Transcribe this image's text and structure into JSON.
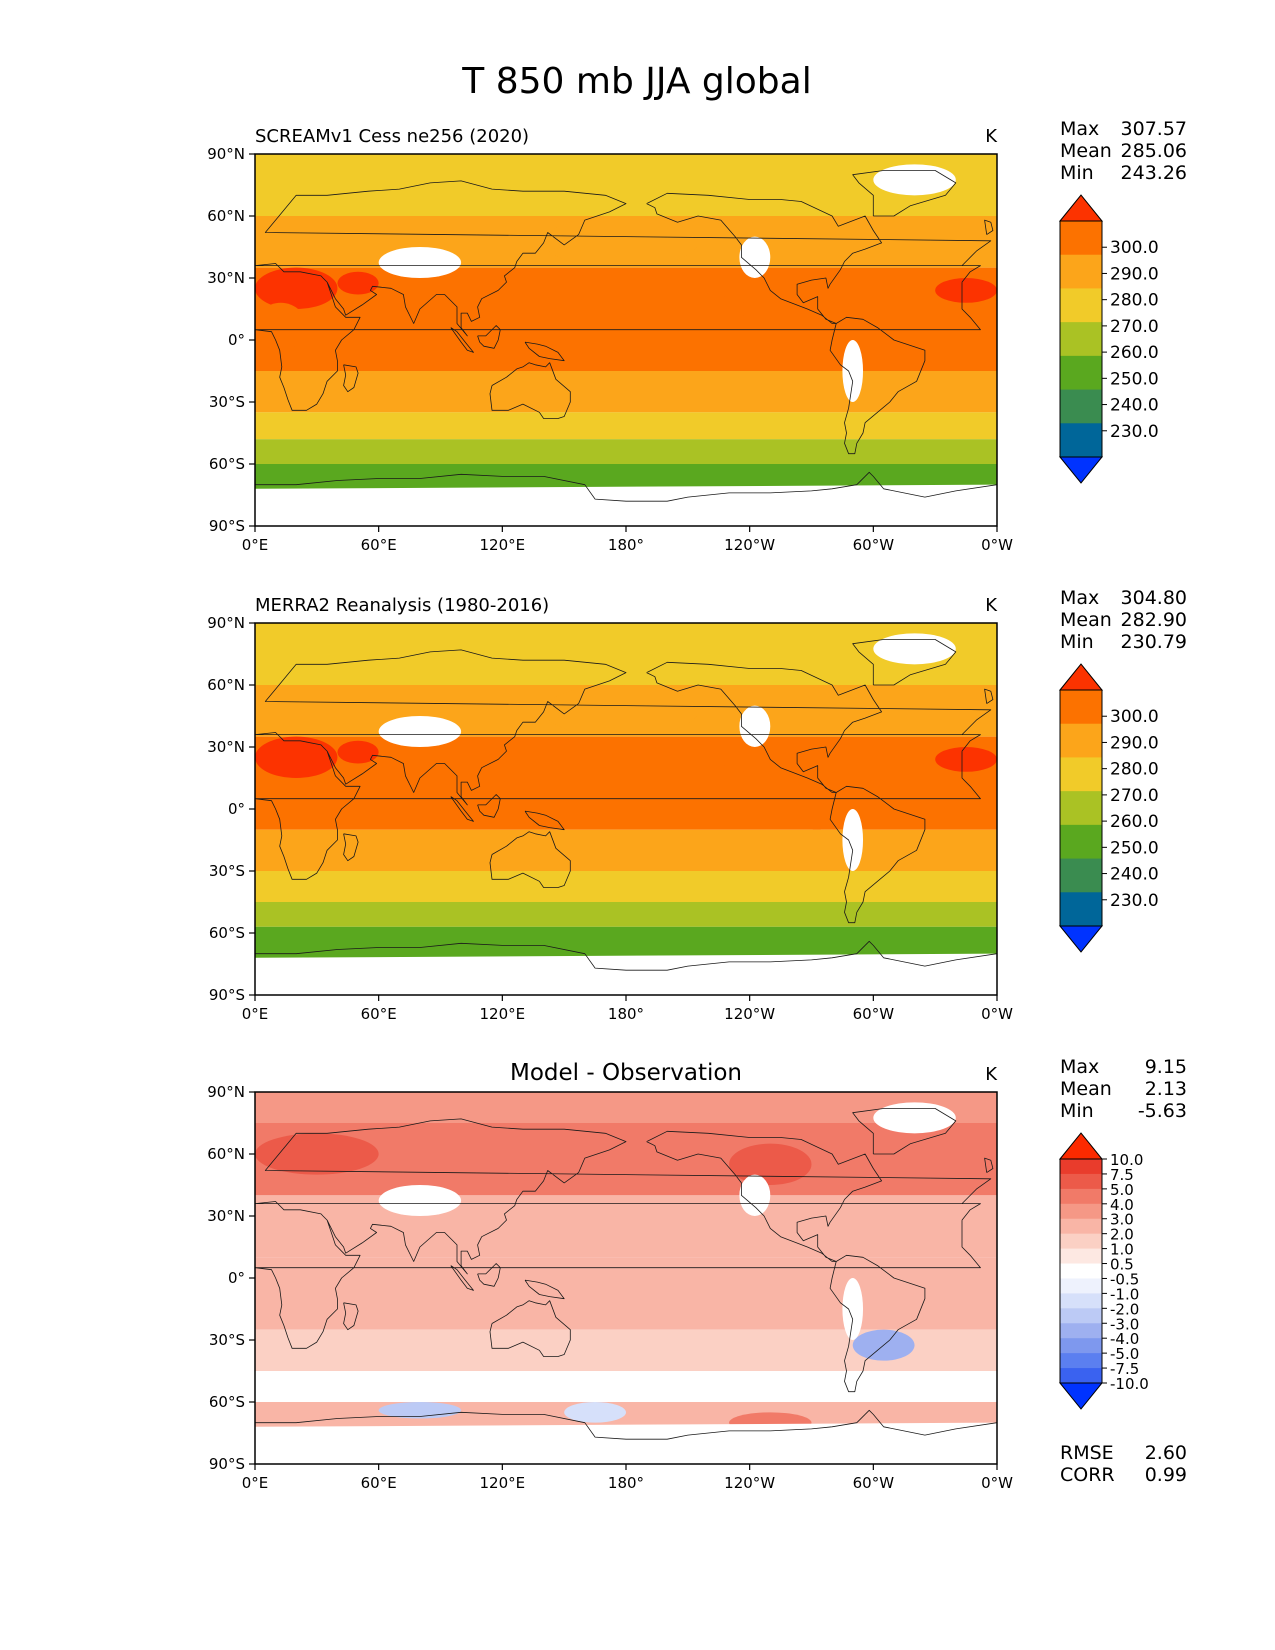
{
  "figure": {
    "title": "T 850 mb JJA global"
  },
  "colors": {
    "abs_scale": [
      "#0033ff",
      "#006699",
      "#3a8c50",
      "#5aa81f",
      "#aac224",
      "#f1cb29",
      "#fca51a",
      "#fc7200",
      "#fc3300"
    ],
    "diff_scale": [
      "#0033ff",
      "#3a62f0",
      "#5b7ff0",
      "#7e98ee",
      "#9eb0f0",
      "#bccaf5",
      "#d6e0fa",
      "#eef2fd",
      "#ffffff",
      "#fde8e2",
      "#fbd0c4",
      "#f9b5a6",
      "#f59886",
      "#f17a68",
      "#ec5a49",
      "#e93c2c",
      "#fc2a00"
    ],
    "ocean_warm": "#fca51a",
    "land_missing": "#ffffff"
  },
  "axes": {
    "lat_ticks": [
      "90°N",
      "60°N",
      "30°N",
      "0°",
      "30°S",
      "60°S",
      "90°S"
    ],
    "lon_ticks": [
      "0°E",
      "60°E",
      "120°E",
      "180°",
      "120°W",
      "60°W",
      "0°W"
    ]
  },
  "panels": [
    {
      "title": "SCREAMv1 Cess ne256 (2020)",
      "units": "K",
      "stats": [
        {
          "label": "Max",
          "value": "307.57"
        },
        {
          "label": "Mean",
          "value": "285.06"
        },
        {
          "label": "Min",
          "value": "243.26"
        }
      ],
      "colorbar": [
        "300.0",
        "290.0",
        "280.0",
        "270.0",
        "260.0",
        "250.0",
        "240.0",
        "230.0"
      ]
    },
    {
      "title": "MERRA2 Reanalysis (1980-2016)",
      "units": "K",
      "stats": [
        {
          "label": "Max",
          "value": "304.80"
        },
        {
          "label": "Mean",
          "value": "282.90"
        },
        {
          "label": "Min",
          "value": "230.79"
        }
      ],
      "colorbar": [
        "300.0",
        "290.0",
        "280.0",
        "270.0",
        "260.0",
        "250.0",
        "240.0",
        "230.0"
      ]
    },
    {
      "title": "Model - Observation",
      "units": "K",
      "stats": [
        {
          "label": "Max",
          "value": "9.15"
        },
        {
          "label": "Mean",
          "value": "2.13"
        },
        {
          "label": "Min",
          "value": "-5.63"
        }
      ],
      "colorbar": [
        "10.0",
        "7.5",
        "5.0",
        "4.0",
        "3.0",
        "2.0",
        "1.0",
        "0.5",
        "-0.5",
        "-1.0",
        "-2.0",
        "-3.0",
        "-4.0",
        "-5.0",
        "-7.5",
        "-10.0"
      ],
      "metrics": [
        {
          "label": "RMSE",
          "value": "2.60"
        },
        {
          "label": "CORR",
          "value": "0.99"
        }
      ]
    }
  ],
  "chart_data": [
    {
      "type": "heatmap",
      "title": "SCREAMv1 Cess ne256 (2020)",
      "variable": "T 850 mb",
      "season": "JJA",
      "units": "K",
      "xlabel": "",
      "ylabel": "",
      "xlim": [
        0,
        360
      ],
      "ylim": [
        -90,
        90
      ],
      "levels": [
        230.0,
        240.0,
        250.0,
        260.0,
        270.0,
        280.0,
        290.0,
        300.0
      ],
      "zonal_bands": [
        {
          "lat_range": [
            60,
            90
          ],
          "value": 275
        },
        {
          "lat_range": [
            35,
            60
          ],
          "value": 285
        },
        {
          "lat_range": [
            -15,
            35
          ],
          "value": 292
        },
        {
          "lat_range": [
            -35,
            -15
          ],
          "value": 285
        },
        {
          "lat_range": [
            -48,
            -35
          ],
          "value": 275
        },
        {
          "lat_range": [
            -60,
            -48
          ],
          "value": 265
        },
        {
          "lat_range": [
            -90,
            -60
          ],
          "value": 255
        }
      ],
      "stats": {
        "max": 307.57,
        "mean": 285.06,
        "min": 243.26
      }
    },
    {
      "type": "heatmap",
      "title": "MERRA2 Reanalysis (1980-2016)",
      "variable": "T 850 mb",
      "season": "JJA",
      "units": "K",
      "xlabel": "",
      "ylabel": "",
      "xlim": [
        0,
        360
      ],
      "ylim": [
        -90,
        90
      ],
      "levels": [
        230.0,
        240.0,
        250.0,
        260.0,
        270.0,
        280.0,
        290.0,
        300.0
      ],
      "zonal_bands": [
        {
          "lat_range": [
            60,
            90
          ],
          "value": 275
        },
        {
          "lat_range": [
            35,
            60
          ],
          "value": 285
        },
        {
          "lat_range": [
            -10,
            35
          ],
          "value": 291
        },
        {
          "lat_range": [
            -30,
            -10
          ],
          "value": 285
        },
        {
          "lat_range": [
            -45,
            -30
          ],
          "value": 275
        },
        {
          "lat_range": [
            -57,
            -45
          ],
          "value": 265
        },
        {
          "lat_range": [
            -90,
            -57
          ],
          "value": 255
        }
      ],
      "stats": {
        "max": 304.8,
        "mean": 282.9,
        "min": 230.79
      }
    },
    {
      "type": "heatmap",
      "title": "Model - Observation",
      "variable": "T 850 mb difference",
      "season": "JJA",
      "units": "K",
      "xlabel": "",
      "ylabel": "",
      "xlim": [
        0,
        360
      ],
      "ylim": [
        -90,
        90
      ],
      "levels": [
        -10.0,
        -7.5,
        -5.0,
        -4.0,
        -3.0,
        -2.0,
        -1.0,
        -0.5,
        0.5,
        1.0,
        2.0,
        3.0,
        4.0,
        5.0,
        7.5,
        10.0
      ],
      "zonal_bands": [
        {
          "lat_range": [
            75,
            90
          ],
          "value": 3.5
        },
        {
          "lat_range": [
            40,
            75
          ],
          "value": 4.5
        },
        {
          "lat_range": [
            10,
            40
          ],
          "value": 2.5
        },
        {
          "lat_range": [
            -25,
            10
          ],
          "value": 2.0
        },
        {
          "lat_range": [
            -45,
            -25
          ],
          "value": 1.5
        },
        {
          "lat_range": [
            -60,
            -45
          ],
          "value": 0.0
        },
        {
          "lat_range": [
            -90,
            -60
          ],
          "value": 2.5
        }
      ],
      "stats": {
        "max": 9.15,
        "mean": 2.13,
        "min": -5.63
      },
      "rmse": 2.6,
      "corr": 0.99
    }
  ]
}
